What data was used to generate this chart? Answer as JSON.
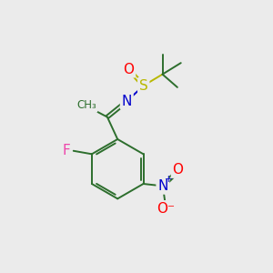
{
  "background_color": "#ebebeb",
  "bond_color": "#2d6e2d",
  "atom_colors": {
    "O": "#ff0000",
    "S": "#b8b800",
    "N": "#0000cc",
    "F": "#ee44aa",
    "NO2_N": "#0000cc",
    "NO2_O": "#ff0000"
  },
  "figsize": [
    3.0,
    3.0
  ],
  "dpi": 100
}
